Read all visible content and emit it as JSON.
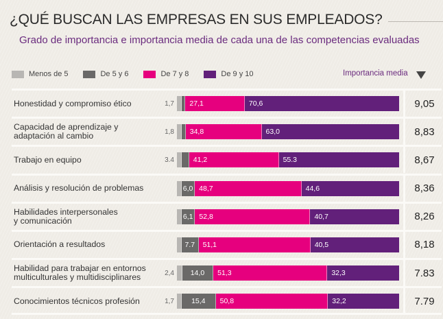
{
  "chart_data": {
    "type": "bar",
    "orientation": "horizontal",
    "stacked": true,
    "percent_scale": [
      0,
      100
    ],
    "title": "¿QUÉ BUSCAN LAS EMPRESAS EN SUS EMPLEADOS?",
    "subtitle": "Grado de importancia e importancia media de cada una de las competencias evaluadas",
    "legend_placement": "top-left",
    "legend": [
      {
        "name": "Menos de 5",
        "color": "#b8b6b3"
      },
      {
        "name": "De 5 y 6",
        "color": "#6a6968"
      },
      {
        "name": "De 7 y 8",
        "color": "#e6007e"
      },
      {
        "name": "De 9 y 10",
        "color": "#62207a"
      }
    ],
    "mean_header": "Importancia media",
    "categories": [
      "Honestidad y compromiso ético",
      "Capacidad de aprendizaje y\nadaptación al cambio",
      "Trabajo en equipo",
      "Análisis y resolución de problemas",
      "Habilidades interpersonales\ny comunicación",
      "Orientación a resultados",
      "Habilidad para trabajar en entornos\nmulticulturales y multidisciplinares",
      "Conocimientos técnicos profesión"
    ],
    "series": [
      {
        "name": "Menos de 5",
        "values": [
          0.6,
          0.4,
          0.1,
          0.7,
          0.4,
          0.7,
          2.4,
          1.7
        ],
        "labels": [
          "",
          "",
          "",
          "",
          "",
          "",
          "2,4",
          "1,7"
        ]
      },
      {
        "name": "De 5 y 6",
        "values": [
          1.7,
          1.8,
          3.4,
          6.0,
          6.1,
          7.7,
          14.0,
          15.4
        ],
        "labels": [
          "1,7",
          "1,8",
          "3.4",
          "6,0",
          "6,1",
          "7.7",
          "14,0",
          "15,4"
        ]
      },
      {
        "name": "De 7 y 8",
        "values": [
          27.1,
          34.8,
          41.2,
          48.7,
          52.8,
          51.1,
          51.3,
          50.8
        ],
        "labels": [
          "27,1",
          "34,8",
          "41,2",
          "48,7",
          "52,8",
          "51,1",
          "51,3",
          "50,8"
        ]
      },
      {
        "name": "De 9 y 10",
        "values": [
          70.6,
          63.0,
          55.3,
          44.6,
          40.7,
          40.5,
          32.3,
          32.2
        ],
        "labels": [
          "70,6",
          "63,0",
          "55.3",
          "44,6",
          "40,7",
          "40,5",
          "32,3",
          "32,2"
        ]
      }
    ],
    "outside_labels": [
      "1,7",
      "1,8",
      "3.4",
      "",
      "",
      "",
      "2,4",
      "1,7"
    ],
    "importancia_media": [
      "9,05",
      "8,83",
      "8,67",
      "8,36",
      "8,26",
      "8,18",
      "7.83",
      "7.79"
    ]
  }
}
